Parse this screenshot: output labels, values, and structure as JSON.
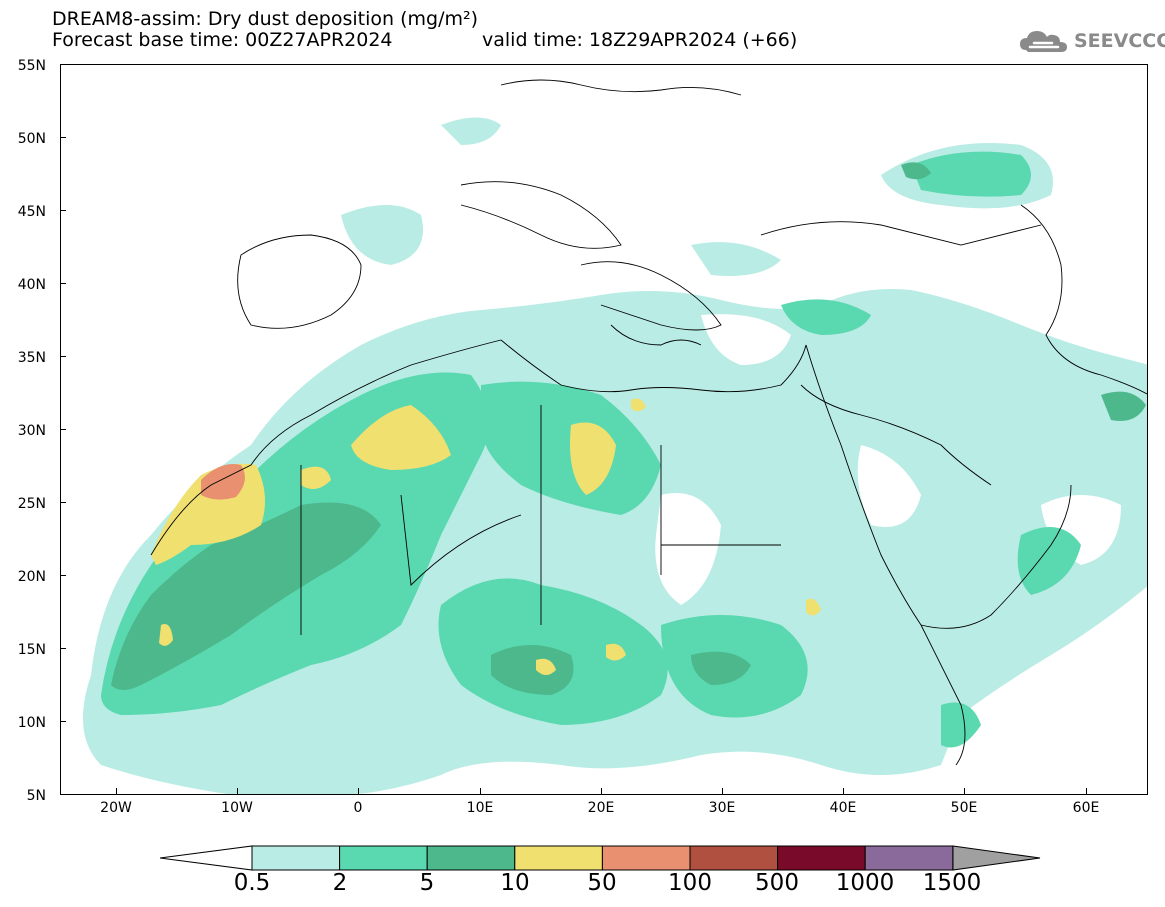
{
  "header": {
    "title_line1": "DREAM8-assim: Dry dust deposition (mg/m²)",
    "title_line2": "Forecast base time: 00Z27APR2024",
    "valid_time": "valid time: 18Z29APR2024 (+66)",
    "logo_text": "SEEVCCC",
    "logo_icon": "cloud-icon"
  },
  "axes": {
    "lat_labels": [
      "55N",
      "50N",
      "45N",
      "40N",
      "35N",
      "30N",
      "25N",
      "20N",
      "15N",
      "10N",
      "5N"
    ],
    "lon_labels": [
      "20W",
      "10W",
      "0",
      "10E",
      "20E",
      "30E",
      "40E",
      "50E",
      "60E"
    ],
    "lat_range": [
      5,
      55
    ],
    "lon_range": [
      -25,
      65
    ]
  },
  "colorbar": {
    "labels": [
      "0.5",
      "2",
      "5",
      "10",
      "50",
      "100",
      "500",
      "1000",
      "1500"
    ],
    "colors": [
      "#b8ece4",
      "#5ad8b0",
      "#4cb88c",
      "#f0e070",
      "#e89070",
      "#b05040",
      "#7a0a2a",
      "#8a6a9a"
    ],
    "under_color": "#ffffff",
    "over_color": "#a0a0a0"
  }
}
